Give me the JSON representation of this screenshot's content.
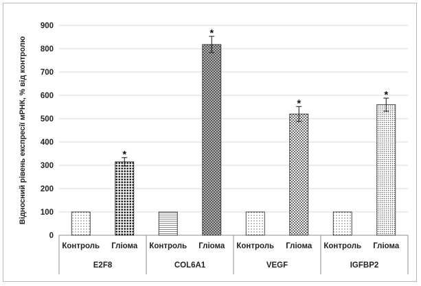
{
  "chart_data": {
    "type": "bar",
    "title": "",
    "xlabel": "",
    "ylabel": "Відносний рівень експресії мРНК, % від контролю",
    "ylim": [
      0,
      900
    ],
    "yticks": [
      0,
      100,
      200,
      300,
      400,
      500,
      600,
      700,
      800,
      900
    ],
    "grid": true,
    "legend": "none",
    "groups": [
      {
        "name": "E2F8",
        "bars": [
          {
            "label": "Контроль",
            "value": 100,
            "error": 0,
            "significant": false,
            "pattern": "dots"
          },
          {
            "label": "Гліома",
            "value": 315,
            "error": 18,
            "significant": true,
            "pattern": "dense-dots"
          }
        ]
      },
      {
        "name": "COL6A1",
        "bars": [
          {
            "label": "Контроль",
            "value": 100,
            "error": 0,
            "significant": false,
            "pattern": "hlines"
          },
          {
            "label": "Гліома",
            "value": 818,
            "error": 35,
            "significant": true,
            "pattern": "crosshatch"
          }
        ]
      },
      {
        "name": "VEGF",
        "bars": [
          {
            "label": "Контроль",
            "value": 100,
            "error": 0,
            "significant": false,
            "pattern": "dots"
          },
          {
            "label": "Гліома",
            "value": 520,
            "error": 32,
            "significant": true,
            "pattern": "checker"
          }
        ]
      },
      {
        "name": "IGFBP2",
        "bars": [
          {
            "label": "Контроль",
            "value": 100,
            "error": 0,
            "significant": false,
            "pattern": "dots"
          },
          {
            "label": "Гліома",
            "value": 560,
            "error": 28,
            "significant": true,
            "pattern": "fine-dots"
          }
        ]
      }
    ],
    "significance_marker": "*"
  }
}
